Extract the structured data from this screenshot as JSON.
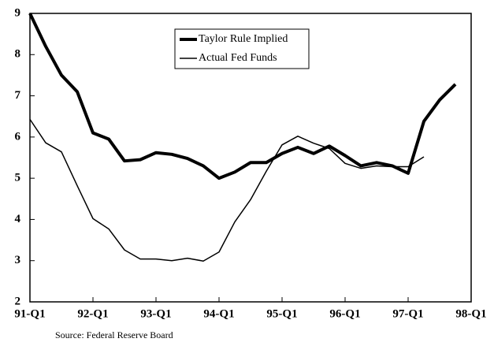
{
  "chart_data": {
    "type": "line",
    "categories": [
      "91-Q1",
      null,
      null,
      null,
      "92-Q1",
      null,
      null,
      null,
      "93-Q1",
      null,
      null,
      null,
      "94-Q1",
      null,
      null,
      null,
      "95-Q1",
      null,
      null,
      null,
      "96-Q1",
      null,
      null,
      null,
      "97-Q1",
      null,
      null,
      null,
      "98-Q1"
    ],
    "series": [
      {
        "name": "Taylor Rule Implied",
        "color": "#000000",
        "width": 4,
        "values": [
          9.0,
          8.2,
          7.5,
          7.1,
          6.1,
          5.95,
          5.42,
          5.45,
          5.62,
          5.58,
          5.48,
          5.3,
          5.0,
          5.15,
          5.38,
          5.38,
          5.6,
          5.75,
          5.6,
          5.78,
          5.55,
          5.3,
          5.38,
          5.3,
          5.12,
          6.38,
          6.9,
          7.28,
          null
        ]
      },
      {
        "name": "Actual Fed Funds",
        "color": "#000000",
        "width": 1.5,
        "values": [
          6.43,
          5.86,
          5.64,
          4.82,
          4.02,
          3.77,
          3.26,
          3.04,
          3.04,
          3.0,
          3.06,
          2.99,
          3.21,
          3.94,
          4.48,
          5.17,
          5.81,
          6.02,
          5.85,
          5.72,
          5.36,
          5.24,
          5.3,
          5.28,
          5.28,
          5.52,
          null,
          null,
          null
        ]
      }
    ],
    "ylim": [
      2,
      9
    ],
    "yticks": [
      2,
      3,
      4,
      5,
      6,
      7,
      8,
      9
    ],
    "grid": false,
    "source": "Source: Federal Reserve Board"
  }
}
